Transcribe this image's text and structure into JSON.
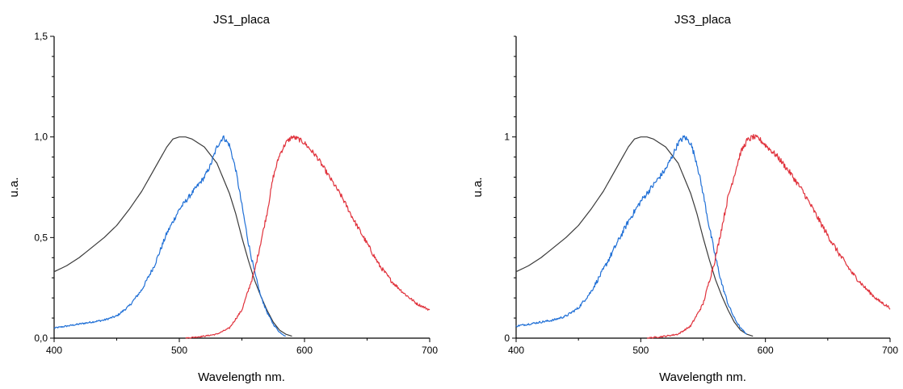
{
  "chart_data": [
    {
      "type": "line",
      "title": "JS1_placa",
      "xlabel": "Wavelength nm.",
      "ylabel": "u.a.",
      "xlim": [
        400,
        700
      ],
      "ylim": [
        0,
        1.5
      ],
      "x_ticks": [
        400,
        500,
        600,
        700
      ],
      "x_tick_labels": [
        "400",
        "500",
        "600",
        "700"
      ],
      "y_ticks": [
        0,
        0.5,
        1.0,
        1.5
      ],
      "y_tick_labels": [
        "0,0",
        "0,5",
        "1,0",
        "1,5"
      ],
      "grid": false,
      "legend": "none",
      "series": [
        {
          "color": "#3a3a3a",
          "noise": 0,
          "points": [
            [
              400,
              0.33
            ],
            [
              410,
              0.36
            ],
            [
              420,
              0.4
            ],
            [
              430,
              0.45
            ],
            [
              440,
              0.5
            ],
            [
              450,
              0.56
            ],
            [
              460,
              0.64
            ],
            [
              470,
              0.73
            ],
            [
              480,
              0.84
            ],
            [
              490,
              0.95
            ],
            [
              495,
              0.99
            ],
            [
              500,
              1.0
            ],
            [
              505,
              1.0
            ],
            [
              510,
              0.99
            ],
            [
              520,
              0.95
            ],
            [
              530,
              0.87
            ],
            [
              540,
              0.72
            ],
            [
              545,
              0.62
            ],
            [
              550,
              0.5
            ],
            [
              555,
              0.39
            ],
            [
              560,
              0.29
            ],
            [
              565,
              0.21
            ],
            [
              570,
              0.14
            ],
            [
              575,
              0.08
            ],
            [
              580,
              0.04
            ],
            [
              585,
              0.02
            ],
            [
              590,
              0.01
            ]
          ]
        },
        {
          "color": "#1f6fd6",
          "noise": 0.012,
          "points": [
            [
              400,
              0.05
            ],
            [
              420,
              0.07
            ],
            [
              430,
              0.08
            ],
            [
              440,
              0.09
            ],
            [
              450,
              0.11
            ],
            [
              460,
              0.16
            ],
            [
              470,
              0.24
            ],
            [
              480,
              0.36
            ],
            [
              490,
              0.52
            ],
            [
              500,
              0.64
            ],
            [
              510,
              0.72
            ],
            [
              520,
              0.8
            ],
            [
              525,
              0.86
            ],
            [
              530,
              0.95
            ],
            [
              535,
              1.0
            ],
            [
              540,
              0.96
            ],
            [
              545,
              0.84
            ],
            [
              550,
              0.66
            ],
            [
              555,
              0.48
            ],
            [
              560,
              0.33
            ],
            [
              565,
              0.21
            ],
            [
              570,
              0.13
            ],
            [
              575,
              0.07
            ],
            [
              580,
              0.03
            ],
            [
              585,
              0.01
            ]
          ]
        },
        {
          "color": "#e0323c",
          "noise": 0.012,
          "points": [
            [
              505,
              0.0
            ],
            [
              520,
              0.01
            ],
            [
              530,
              0.02
            ],
            [
              540,
              0.05
            ],
            [
              550,
              0.14
            ],
            [
              560,
              0.33
            ],
            [
              570,
              0.62
            ],
            [
              575,
              0.8
            ],
            [
              580,
              0.91
            ],
            [
              585,
              0.97
            ],
            [
              590,
              1.0
            ],
            [
              595,
              0.99
            ],
            [
              600,
              0.97
            ],
            [
              610,
              0.9
            ],
            [
              620,
              0.8
            ],
            [
              630,
              0.7
            ],
            [
              640,
              0.58
            ],
            [
              650,
              0.47
            ],
            [
              660,
              0.36
            ],
            [
              670,
              0.28
            ],
            [
              680,
              0.22
            ],
            [
              690,
              0.17
            ],
            [
              700,
              0.14
            ]
          ]
        }
      ]
    },
    {
      "type": "line",
      "title": "JS3_placa",
      "xlabel": "Wavelength nm.",
      "ylabel": "u.a.",
      "xlim": [
        400,
        700
      ],
      "ylim": [
        0,
        1.5
      ],
      "x_ticks": [
        400,
        500,
        600,
        700
      ],
      "x_tick_labels": [
        "400",
        "500",
        "600",
        "700"
      ],
      "y_ticks": [
        0,
        1
      ],
      "y_tick_labels": [
        "0",
        "1"
      ],
      "grid": false,
      "legend": "none",
      "series": [
        {
          "color": "#3a3a3a",
          "noise": 0,
          "points": [
            [
              400,
              0.33
            ],
            [
              410,
              0.36
            ],
            [
              420,
              0.4
            ],
            [
              430,
              0.45
            ],
            [
              440,
              0.5
            ],
            [
              450,
              0.56
            ],
            [
              460,
              0.64
            ],
            [
              470,
              0.73
            ],
            [
              480,
              0.84
            ],
            [
              490,
              0.95
            ],
            [
              495,
              0.99
            ],
            [
              500,
              1.0
            ],
            [
              505,
              1.0
            ],
            [
              510,
              0.99
            ],
            [
              520,
              0.95
            ],
            [
              530,
              0.87
            ],
            [
              540,
              0.72
            ],
            [
              545,
              0.62
            ],
            [
              550,
              0.5
            ],
            [
              555,
              0.39
            ],
            [
              560,
              0.29
            ],
            [
              565,
              0.21
            ],
            [
              570,
              0.14
            ],
            [
              575,
              0.08
            ],
            [
              580,
              0.04
            ],
            [
              585,
              0.02
            ],
            [
              590,
              0.01
            ]
          ]
        },
        {
          "color": "#1f6fd6",
          "noise": 0.014,
          "points": [
            [
              400,
              0.06
            ],
            [
              420,
              0.08
            ],
            [
              430,
              0.09
            ],
            [
              440,
              0.11
            ],
            [
              450,
              0.15
            ],
            [
              460,
              0.23
            ],
            [
              470,
              0.34
            ],
            [
              480,
              0.46
            ],
            [
              490,
              0.58
            ],
            [
              500,
              0.68
            ],
            [
              510,
              0.76
            ],
            [
              520,
              0.84
            ],
            [
              525,
              0.9
            ],
            [
              530,
              0.97
            ],
            [
              535,
              1.0
            ],
            [
              540,
              0.97
            ],
            [
              545,
              0.87
            ],
            [
              550,
              0.72
            ],
            [
              555,
              0.55
            ],
            [
              560,
              0.4
            ],
            [
              565,
              0.27
            ],
            [
              570,
              0.17
            ],
            [
              575,
              0.1
            ],
            [
              580,
              0.05
            ],
            [
              585,
              0.02
            ]
          ]
        },
        {
          "color": "#e0323c",
          "noise": 0.014,
          "points": [
            [
              505,
              0.0
            ],
            [
              520,
              0.01
            ],
            [
              530,
              0.02
            ],
            [
              540,
              0.06
            ],
            [
              550,
              0.17
            ],
            [
              560,
              0.4
            ],
            [
              570,
              0.7
            ],
            [
              580,
              0.92
            ],
            [
              585,
              0.98
            ],
            [
              590,
              1.0
            ],
            [
              595,
              0.99
            ],
            [
              600,
              0.96
            ],
            [
              610,
              0.9
            ],
            [
              620,
              0.82
            ],
            [
              630,
              0.73
            ],
            [
              640,
              0.62
            ],
            [
              650,
              0.51
            ],
            [
              660,
              0.41
            ],
            [
              670,
              0.32
            ],
            [
              680,
              0.25
            ],
            [
              690,
              0.19
            ],
            [
              700,
              0.15
            ]
          ]
        }
      ]
    }
  ]
}
